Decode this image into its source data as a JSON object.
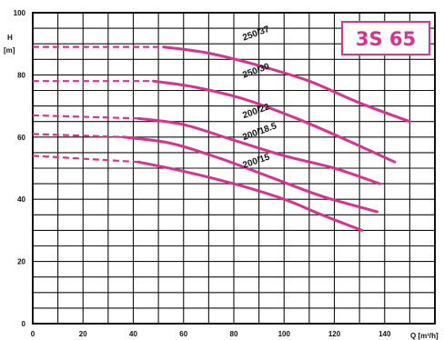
{
  "chart_data": {
    "type": "line",
    "title": "3S 65",
    "xlabel": "Q [m³/h]",
    "ylabel_line1": "H",
    "ylabel_line2": "[m]",
    "xlim": [
      0,
      160
    ],
    "ylim": [
      0,
      100
    ],
    "x_ticks": [
      0,
      20,
      40,
      60,
      80,
      100,
      120,
      140
    ],
    "y_ticks": [
      0,
      20,
      40,
      60,
      80,
      100
    ],
    "grid": true,
    "colors": {
      "curve": "#d6338e",
      "grid": "#111111",
      "badge": "#d6338e"
    },
    "series": [
      {
        "name": "250/37",
        "dashed": {
          "x": [
            0,
            52
          ],
          "y": [
            89,
            89
          ]
        },
        "solid": {
          "x": [
            52,
            70,
            90,
            110,
            130,
            150
          ],
          "y": [
            89,
            87,
            83,
            78,
            71,
            65
          ]
        }
      },
      {
        "name": "250/30",
        "dashed": {
          "x": [
            0,
            48
          ],
          "y": [
            78,
            78
          ]
        },
        "solid": {
          "x": [
            48,
            65,
            85,
            105,
            125,
            144
          ],
          "y": [
            78,
            76,
            72,
            66,
            59,
            52
          ]
        }
      },
      {
        "name": "200/22",
        "dashed": {
          "x": [
            0,
            42
          ],
          "y": [
            67,
            66
          ]
        },
        "solid": {
          "x": [
            42,
            60,
            80,
            100,
            120,
            138
          ],
          "y": [
            66,
            64,
            59,
            54,
            50,
            45
          ]
        }
      },
      {
        "name": "200/18.5",
        "dashed": {
          "x": [
            0,
            36
          ],
          "y": [
            61,
            60
          ]
        },
        "solid": {
          "x": [
            36,
            55,
            75,
            95,
            115,
            137
          ],
          "y": [
            60,
            58,
            53,
            47,
            41,
            36
          ]
        }
      },
      {
        "name": "200/15",
        "dashed": {
          "x": [
            0,
            42
          ],
          "y": [
            54,
            52
          ]
        },
        "solid": {
          "x": [
            42,
            60,
            80,
            100,
            115,
            131
          ],
          "y": [
            52,
            49,
            45,
            40,
            35,
            30
          ]
        }
      }
    ]
  }
}
